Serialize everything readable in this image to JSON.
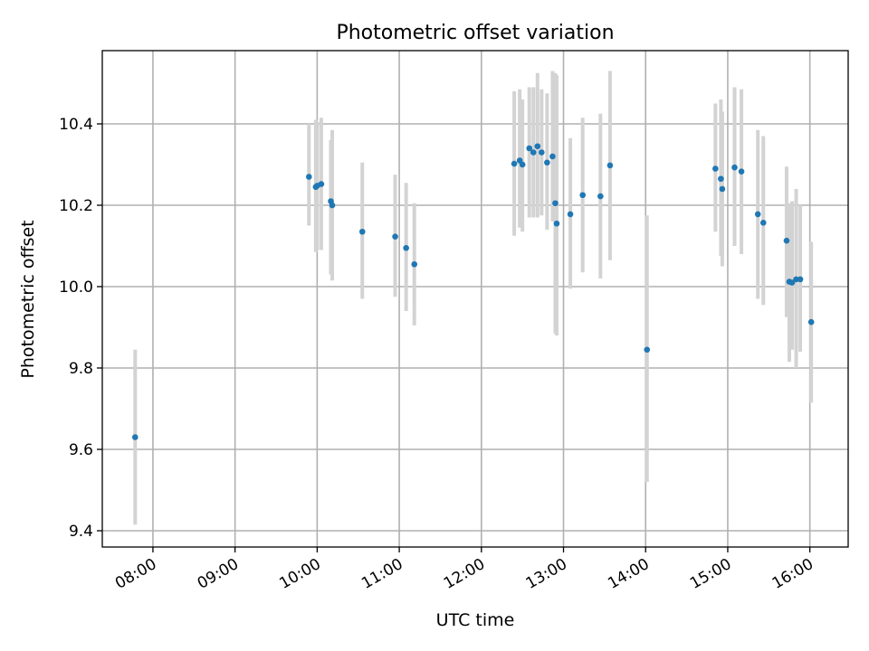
{
  "chart_data": {
    "type": "scatter",
    "title": "Photometric offset variation",
    "xlabel": "UTC time",
    "ylabel": "Photometric offset",
    "x_axis_type": "time",
    "xlim": [
      "07:23",
      "16:28"
    ],
    "ylim": [
      9.36,
      10.58
    ],
    "grid": true,
    "legend": "none",
    "xticks": [
      "08:00",
      "09:00",
      "10:00",
      "11:00",
      "12:00",
      "13:00",
      "14:00",
      "15:00",
      "16:00"
    ],
    "yticks": [
      "9.4",
      "9.6",
      "9.8",
      "10.0",
      "10.2",
      "10.4"
    ],
    "colors": {
      "point": "#1f77b4",
      "errorbar": "#d3d3d3",
      "grid": "#b0b0b0"
    },
    "series": [
      {
        "points": [
          {
            "x": "07:47",
            "y": 9.63,
            "ylow": 9.415,
            "yhigh": 9.845
          },
          {
            "x": "09:54",
            "y": 10.27,
            "ylow": 10.15,
            "yhigh": 10.4
          },
          {
            "x": "09:59",
            "y": 10.245,
            "ylow": 10.085,
            "yhigh": 10.41
          },
          {
            "x": "10:00",
            "y": 10.248,
            "ylow": 10.09,
            "yhigh": 10.405
          },
          {
            "x": "10:03",
            "y": 10.252,
            "ylow": 10.09,
            "yhigh": 10.415
          },
          {
            "x": "10:10",
            "y": 10.21,
            "ylow": 10.03,
            "yhigh": 10.36
          },
          {
            "x": "10:11",
            "y": 10.2,
            "ylow": 10.015,
            "yhigh": 10.385
          },
          {
            "x": "10:33",
            "y": 10.135,
            "ylow": 9.97,
            "yhigh": 10.305
          },
          {
            "x": "10:57",
            "y": 10.123,
            "ylow": 9.975,
            "yhigh": 10.275
          },
          {
            "x": "11:05",
            "y": 10.095,
            "ylow": 9.94,
            "yhigh": 10.255
          },
          {
            "x": "11:11",
            "y": 10.055,
            "ylow": 9.905,
            "yhigh": 10.205
          },
          {
            "x": "12:24",
            "y": 10.302,
            "ylow": 10.125,
            "yhigh": 10.48
          },
          {
            "x": "12:28",
            "y": 10.31,
            "ylow": 10.145,
            "yhigh": 10.485
          },
          {
            "x": "12:30",
            "y": 10.3,
            "ylow": 10.135,
            "yhigh": 10.46
          },
          {
            "x": "12:35",
            "y": 10.34,
            "ylow": 10.17,
            "yhigh": 10.49
          },
          {
            "x": "12:38",
            "y": 10.33,
            "ylow": 10.17,
            "yhigh": 10.49
          },
          {
            "x": "12:41",
            "y": 10.345,
            "ylow": 10.17,
            "yhigh": 10.525
          },
          {
            "x": "12:44",
            "y": 10.33,
            "ylow": 10.175,
            "yhigh": 10.485
          },
          {
            "x": "12:48",
            "y": 10.305,
            "ylow": 10.14,
            "yhigh": 10.475
          },
          {
            "x": "12:52",
            "y": 10.32,
            "ylow": 10.16,
            "yhigh": 10.53
          },
          {
            "x": "12:54",
            "y": 10.205,
            "ylow": 9.885,
            "yhigh": 10.525
          },
          {
            "x": "12:55",
            "y": 10.155,
            "ylow": 9.88,
            "yhigh": 10.52
          },
          {
            "x": "13:05",
            "y": 10.178,
            "ylow": 9.995,
            "yhigh": 10.365
          },
          {
            "x": "13:14",
            "y": 10.225,
            "ylow": 10.035,
            "yhigh": 10.415
          },
          {
            "x": "13:27",
            "y": 10.222,
            "ylow": 10.02,
            "yhigh": 10.425
          },
          {
            "x": "13:34",
            "y": 10.298,
            "ylow": 10.065,
            "yhigh": 10.53
          },
          {
            "x": "14:01",
            "y": 9.845,
            "ylow": 9.52,
            "yhigh": 10.175
          },
          {
            "x": "14:51",
            "y": 10.29,
            "ylow": 10.135,
            "yhigh": 10.45
          },
          {
            "x": "14:55",
            "y": 10.265,
            "ylow": 10.075,
            "yhigh": 10.46
          },
          {
            "x": "14:56",
            "y": 10.24,
            "ylow": 10.05,
            "yhigh": 10.43
          },
          {
            "x": "15:05",
            "y": 10.293,
            "ylow": 10.1,
            "yhigh": 10.49
          },
          {
            "x": "15:10",
            "y": 10.283,
            "ylow": 10.08,
            "yhigh": 10.485
          },
          {
            "x": "15:22",
            "y": 10.178,
            "ylow": 9.97,
            "yhigh": 10.385
          },
          {
            "x": "15:26",
            "y": 10.157,
            "ylow": 9.955,
            "yhigh": 10.37
          },
          {
            "x": "15:43",
            "y": 10.113,
            "ylow": 9.925,
            "yhigh": 10.295
          },
          {
            "x": "15:45",
            "y": 10.012,
            "ylow": 9.815,
            "yhigh": 10.205
          },
          {
            "x": "15:47",
            "y": 10.01,
            "ylow": 9.845,
            "yhigh": 10.21
          },
          {
            "x": "15:50",
            "y": 10.018,
            "ylow": 9.8,
            "yhigh": 10.24
          },
          {
            "x": "15:53",
            "y": 10.018,
            "ylow": 9.84,
            "yhigh": 10.2
          },
          {
            "x": "16:01",
            "y": 9.913,
            "ylow": 9.715,
            "yhigh": 10.11
          }
        ]
      }
    ]
  }
}
